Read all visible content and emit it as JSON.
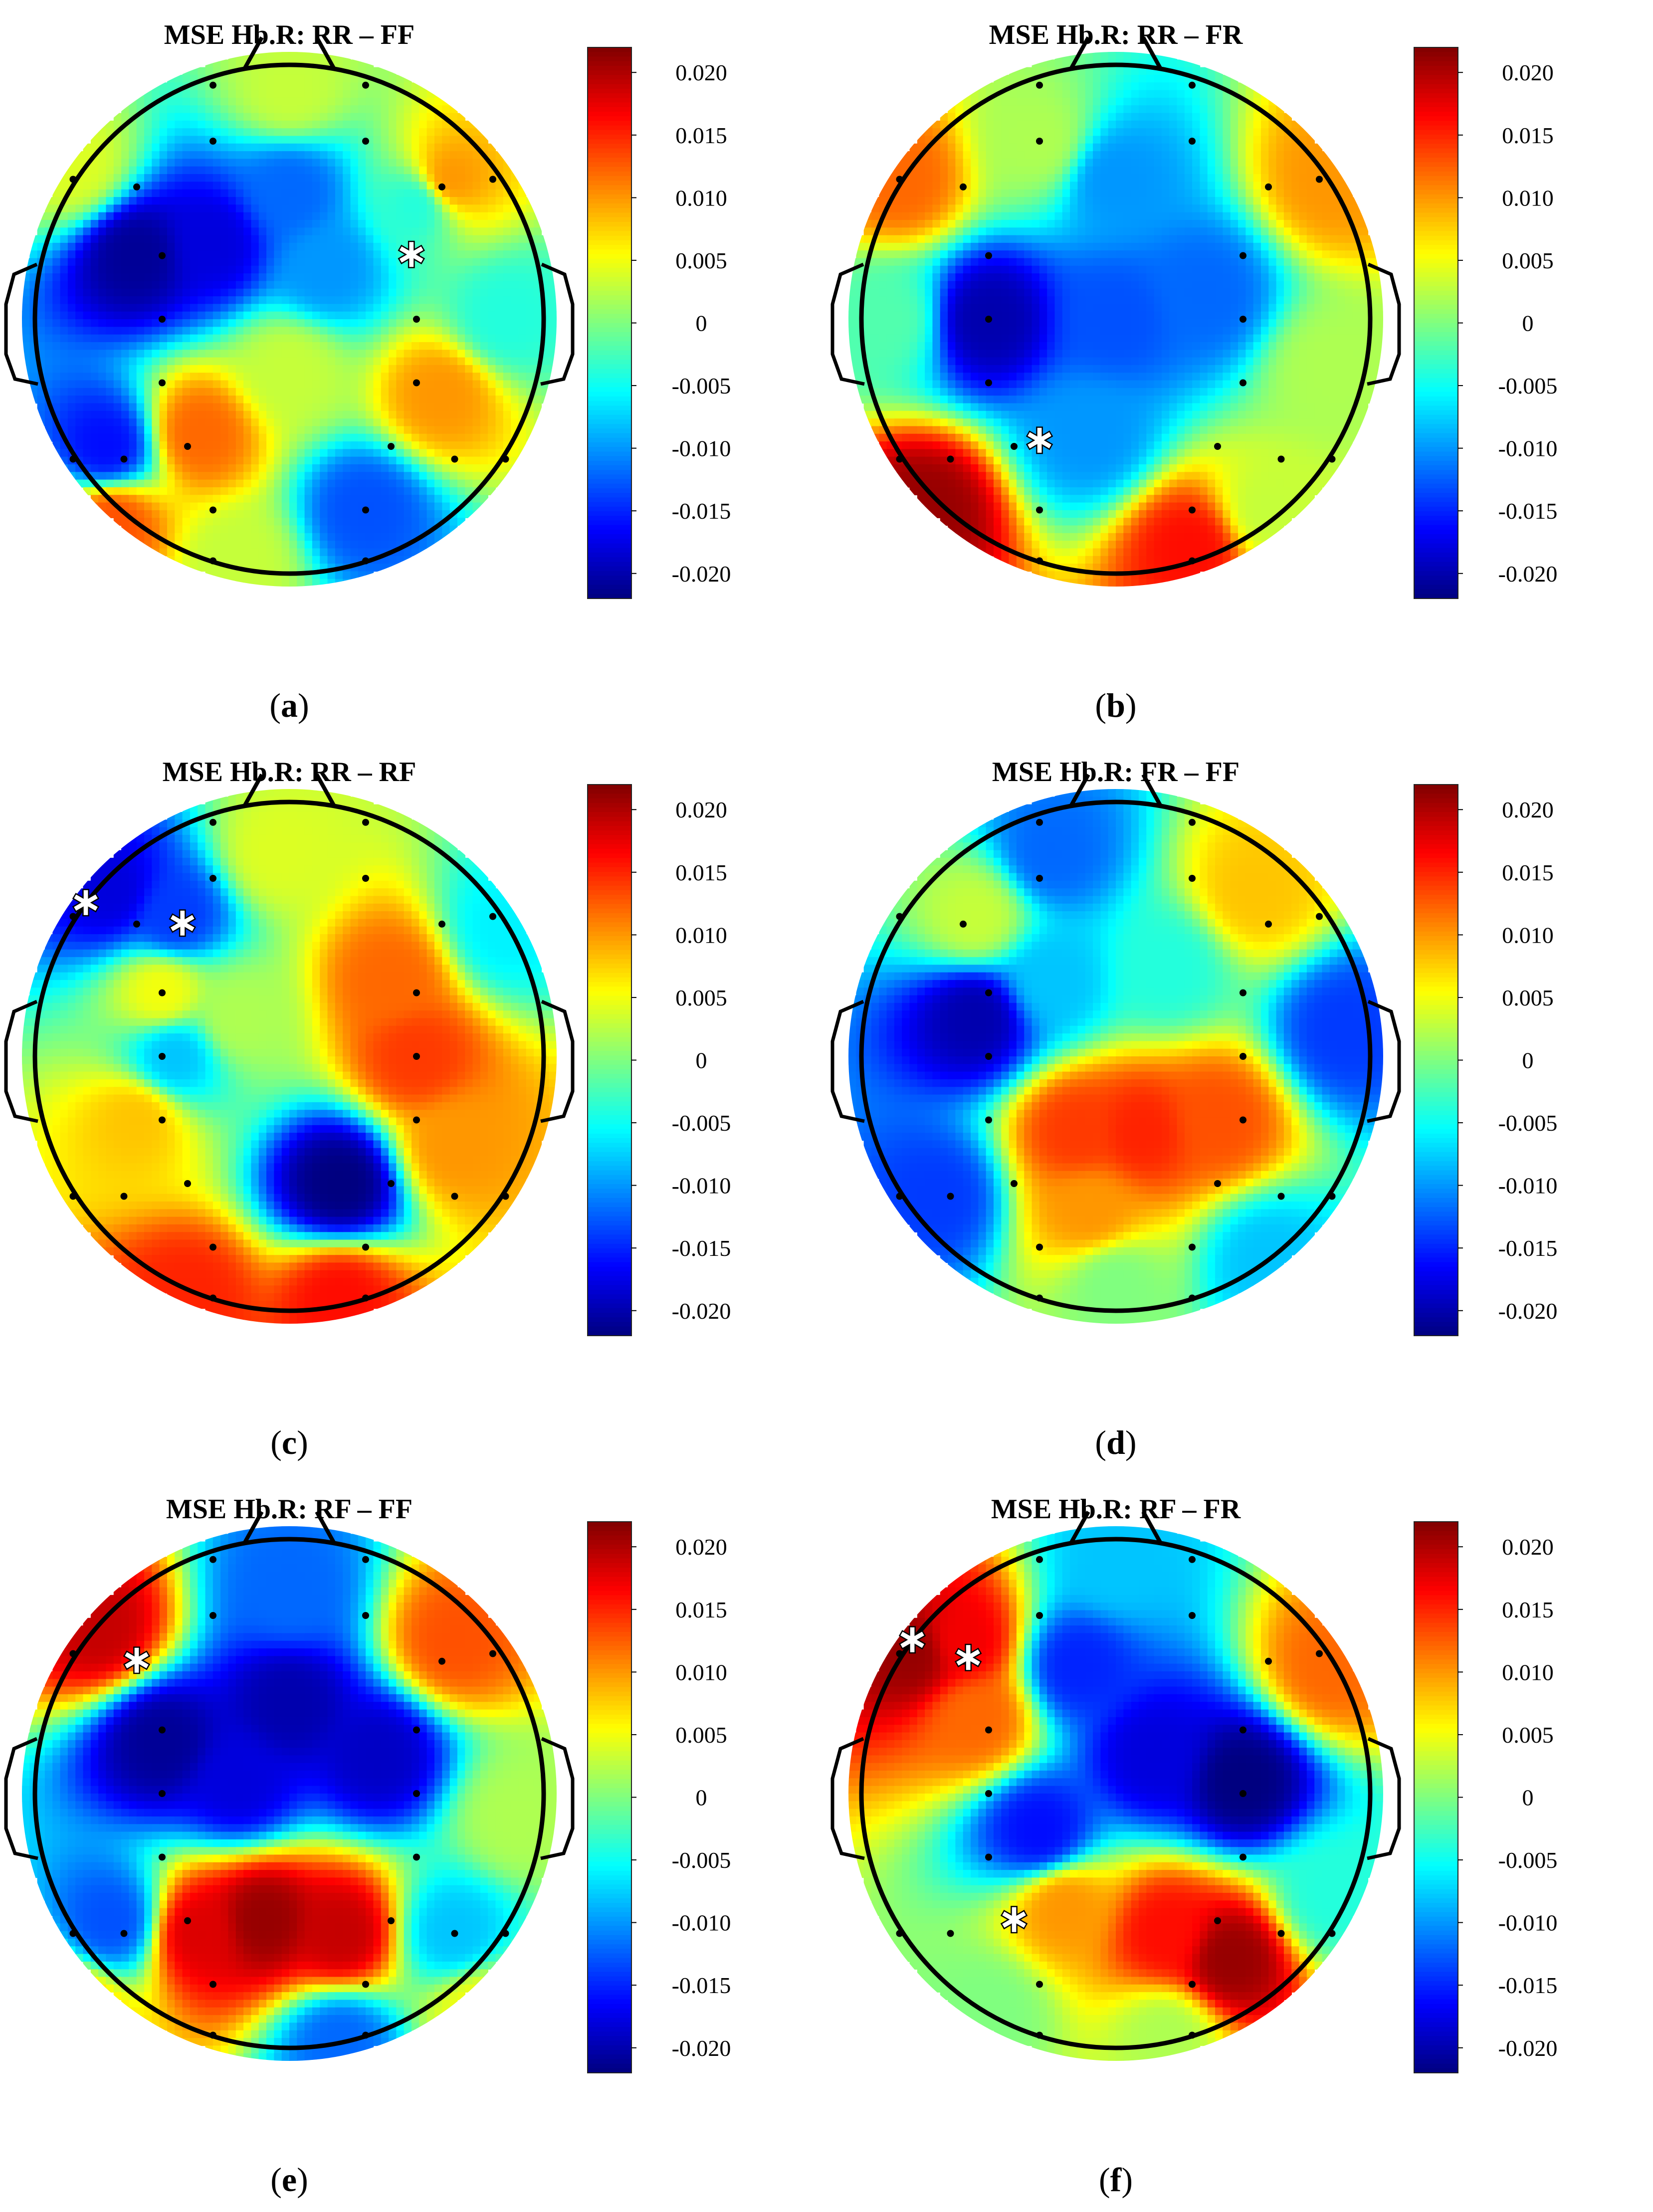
{
  "chart_data": [
    {
      "type": "heatmap",
      "title": "MSE Hb.R: RR – FF",
      "caption_letter": "a",
      "colorbar": {
        "range": [
          -0.022,
          0.022
        ],
        "ticks": [
          "0.020",
          "0.015",
          "0.010",
          "0.005",
          "0",
          "-0.005",
          "-0.010",
          "-0.015",
          "-0.020"
        ]
      },
      "significant_channels": 1,
      "values": [
        {
          "x": -0.6,
          "y": 0.25,
          "v": -0.021
        },
        {
          "x": -0.3,
          "y": 0.3,
          "v": -0.018
        },
        {
          "x": 0.0,
          "y": 0.5,
          "v": -0.012
        },
        {
          "x": 0.15,
          "y": 0.2,
          "v": -0.01
        },
        {
          "x": 0.5,
          "y": 0.45,
          "v": -0.004
        },
        {
          "x": 0.63,
          "y": 0.55,
          "v": 0.01
        },
        {
          "x": 0.6,
          "y": -0.3,
          "v": 0.01
        },
        {
          "x": -0.35,
          "y": -0.45,
          "v": 0.012
        },
        {
          "x": 0.3,
          "y": -0.75,
          "v": -0.013
        },
        {
          "x": -0.72,
          "y": -0.5,
          "v": -0.016
        },
        {
          "x": -0.85,
          "y": 0.6,
          "v": 0.004
        },
        {
          "x": -0.7,
          "y": -0.8,
          "v": 0.013
        },
        {
          "x": 0.85,
          "y": 0.0,
          "v": -0.004
        },
        {
          "x": 0.0,
          "y": -0.2,
          "v": 0.003
        },
        {
          "x": 0.0,
          "y": 0.9,
          "v": 0.003
        },
        {
          "x": -0.2,
          "y": -0.95,
          "v": 0.003
        }
      ]
    },
    {
      "type": "heatmap",
      "title": "MSE Hb.R: RR – FR",
      "caption_letter": "b",
      "colorbar": {
        "range": [
          -0.022,
          0.022
        ],
        "ticks": [
          "0.020",
          "0.015",
          "0.010",
          "0.005",
          "0",
          "-0.005",
          "-0.010",
          "-0.015",
          "-0.020"
        ]
      },
      "significant_channels": 1,
      "values": [
        {
          "x": -0.5,
          "y": 0.0,
          "v": -0.02
        },
        {
          "x": 0.0,
          "y": 0.0,
          "v": -0.013
        },
        {
          "x": 0.35,
          "y": 0.1,
          "v": -0.012
        },
        {
          "x": 0.0,
          "y": 0.55,
          "v": -0.01
        },
        {
          "x": -0.1,
          "y": -0.45,
          "v": -0.01
        },
        {
          "x": -0.85,
          "y": 0.55,
          "v": 0.012
        },
        {
          "x": 0.85,
          "y": 0.55,
          "v": 0.01
        },
        {
          "x": -0.75,
          "y": -0.75,
          "v": 0.021
        },
        {
          "x": 0.3,
          "y": -0.9,
          "v": 0.016
        },
        {
          "x": 0.85,
          "y": -0.2,
          "v": 0.002
        },
        {
          "x": -0.9,
          "y": 0.0,
          "v": -0.002
        },
        {
          "x": -0.3,
          "y": 0.7,
          "v": 0.002
        },
        {
          "x": 0.6,
          "y": -0.75,
          "v": 0.003
        }
      ]
    },
    {
      "type": "heatmap",
      "title": "MSE Hb.R: RR – RF",
      "caption_letter": "c",
      "colorbar": {
        "range": [
          -0.022,
          0.022
        ],
        "ticks": [
          "0.020",
          "0.015",
          "0.010",
          "0.005",
          "0",
          "-0.005",
          "-0.010",
          "-0.015",
          "-0.020"
        ]
      },
      "significant_channels": 2,
      "values": [
        {
          "x": -0.7,
          "y": 0.65,
          "v": -0.018
        },
        {
          "x": -0.45,
          "y": 0.55,
          "v": -0.014
        },
        {
          "x": 0.2,
          "y": -0.5,
          "v": -0.022
        },
        {
          "x": 0.5,
          "y": 0.0,
          "v": 0.014
        },
        {
          "x": 0.4,
          "y": 0.3,
          "v": 0.012
        },
        {
          "x": 0.65,
          "y": -0.35,
          "v": 0.01
        },
        {
          "x": -0.6,
          "y": -0.25,
          "v": 0.008
        },
        {
          "x": -0.5,
          "y": 0.25,
          "v": 0.005
        },
        {
          "x": -0.05,
          "y": 0.8,
          "v": 0.004
        },
        {
          "x": -0.4,
          "y": -0.95,
          "v": 0.015
        },
        {
          "x": 0.2,
          "y": -0.95,
          "v": 0.016
        },
        {
          "x": 0.85,
          "y": 0.5,
          "v": -0.006
        },
        {
          "x": -0.45,
          "y": 0.0,
          "v": -0.008
        },
        {
          "x": -0.2,
          "y": 0.15,
          "v": 0.002
        }
      ]
    },
    {
      "type": "heatmap",
      "title": "MSE Hb.R: FR – FF",
      "caption_letter": "d",
      "colorbar": {
        "range": [
          -0.022,
          0.022
        ],
        "ticks": [
          "0.020",
          "0.015",
          "0.010",
          "0.005",
          "0",
          "-0.005",
          "-0.010",
          "-0.015",
          "-0.020"
        ]
      },
      "significant_channels": 0,
      "values": [
        {
          "x": -0.55,
          "y": 0.15,
          "v": -0.02
        },
        {
          "x": 0.1,
          "y": -0.3,
          "v": 0.015
        },
        {
          "x": -0.15,
          "y": -0.3,
          "v": 0.014
        },
        {
          "x": 0.4,
          "y": -0.25,
          "v": 0.013
        },
        {
          "x": -0.1,
          "y": -0.6,
          "v": 0.01
        },
        {
          "x": 0.55,
          "y": 0.65,
          "v": 0.008
        },
        {
          "x": -0.25,
          "y": 0.8,
          "v": -0.012
        },
        {
          "x": 0.9,
          "y": 0.1,
          "v": -0.014
        },
        {
          "x": -0.7,
          "y": -0.55,
          "v": -0.014
        },
        {
          "x": 0.6,
          "y": -0.8,
          "v": -0.008
        },
        {
          "x": -0.55,
          "y": 0.55,
          "v": 0.003
        },
        {
          "x": 0.2,
          "y": 0.35,
          "v": -0.004
        },
        {
          "x": -0.25,
          "y": 0.3,
          "v": -0.008
        },
        {
          "x": 0.0,
          "y": -0.9,
          "v": 0.0
        }
      ]
    },
    {
      "type": "heatmap",
      "title": "MSE Hb.R: RF – FF",
      "caption_letter": "e",
      "colorbar": {
        "range": [
          -0.022,
          0.022
        ],
        "ticks": [
          "0.020",
          "0.015",
          "0.010",
          "0.005",
          "0",
          "-0.005",
          "-0.010",
          "-0.015",
          "-0.020"
        ]
      },
      "significant_channels": 1,
      "values": [
        {
          "x": -0.1,
          "y": -0.5,
          "v": 0.021
        },
        {
          "x": 0.2,
          "y": -0.55,
          "v": 0.019
        },
        {
          "x": -0.35,
          "y": -0.55,
          "v": 0.018
        },
        {
          "x": -0.75,
          "y": 0.65,
          "v": 0.019
        },
        {
          "x": 0.65,
          "y": 0.6,
          "v": 0.013
        },
        {
          "x": -0.5,
          "y": 0.2,
          "v": -0.021
        },
        {
          "x": 0.0,
          "y": 0.35,
          "v": -0.02
        },
        {
          "x": 0.35,
          "y": 0.15,
          "v": -0.019
        },
        {
          "x": -0.2,
          "y": 0.05,
          "v": -0.018
        },
        {
          "x": 0.0,
          "y": 0.8,
          "v": -0.012
        },
        {
          "x": -0.7,
          "y": -0.5,
          "v": -0.013
        },
        {
          "x": 0.65,
          "y": -0.55,
          "v": -0.008
        },
        {
          "x": 0.2,
          "y": -0.98,
          "v": -0.012
        },
        {
          "x": 0.9,
          "y": -0.1,
          "v": 0.002
        },
        {
          "x": -0.85,
          "y": -0.85,
          "v": 0.008
        },
        {
          "x": 0.75,
          "y": -0.85,
          "v": 0.005
        }
      ]
    },
    {
      "type": "heatmap",
      "title": "MSE Hb.R: RF – FR",
      "caption_letter": "f",
      "colorbar": {
        "range": [
          -0.022,
          0.022
        ],
        "ticks": [
          "0.020",
          "0.015",
          "0.010",
          "0.005",
          "0",
          "-0.005",
          "-0.010",
          "-0.015",
          "-0.020"
        ]
      },
      "significant_channels": 3,
      "values": [
        {
          "x": -0.8,
          "y": 0.55,
          "v": 0.021
        },
        {
          "x": -0.6,
          "y": 0.6,
          "v": 0.017
        },
        {
          "x": -0.55,
          "y": 0.3,
          "v": 0.012
        },
        {
          "x": 0.45,
          "y": -0.65,
          "v": 0.021
        },
        {
          "x": 0.2,
          "y": -0.55,
          "v": 0.016
        },
        {
          "x": -0.2,
          "y": -0.45,
          "v": 0.01
        },
        {
          "x": 0.85,
          "y": 0.5,
          "v": 0.012
        },
        {
          "x": 0.5,
          "y": 0.05,
          "v": -0.022
        },
        {
          "x": 0.15,
          "y": 0.15,
          "v": -0.018
        },
        {
          "x": -0.3,
          "y": -0.15,
          "v": -0.016
        },
        {
          "x": -0.15,
          "y": 0.5,
          "v": -0.015
        },
        {
          "x": 0.0,
          "y": 0.9,
          "v": -0.008
        },
        {
          "x": 0.85,
          "y": -0.4,
          "v": -0.004
        },
        {
          "x": -0.5,
          "y": -0.85,
          "v": 0.0
        },
        {
          "x": 0.2,
          "y": -0.95,
          "v": 0.002
        }
      ]
    }
  ]
}
